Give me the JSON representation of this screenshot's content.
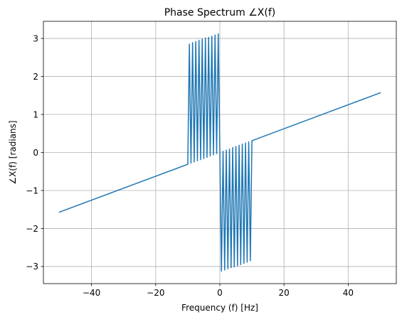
{
  "chart_data": {
    "type": "line",
    "title": "Phase Spectrum ∠X(f)",
    "xlabel": "Frequency (f) [Hz]",
    "ylabel": "∠X(f) [radians]",
    "xlim": [
      -55,
      55
    ],
    "ylim": [
      -3.45,
      3.45
    ],
    "xticks": [
      -40,
      -20,
      0,
      20,
      40
    ],
    "xtick_labels": [
      "−40",
      "−20",
      "0",
      "20",
      "40"
    ],
    "yticks": [
      -3,
      -2,
      -1,
      0,
      1,
      2,
      3
    ],
    "ytick_labels": [
      "−3",
      "−2",
      "−1",
      "0",
      "1",
      "2",
      "3"
    ],
    "grid": true,
    "colors": {
      "series": "#1f77b4",
      "grid": "#b0b0b0"
    },
    "series": [
      {
        "x": [
          -50,
          -10,
          -10,
          -9.5,
          -9,
          -9,
          -8.5,
          -8,
          -8,
          -7.5,
          -7,
          -7,
          -6.5,
          -6,
          -6,
          -5.5,
          -5,
          -5,
          -4.5,
          -4,
          -4,
          -3.5,
          -3,
          -3,
          -2.5,
          -2,
          -2,
          -1.5,
          -1,
          -1,
          -0.5,
          0,
          0,
          0.5,
          1,
          1,
          1.5,
          2,
          2,
          2.5,
          3,
          3,
          3.5,
          4,
          4,
          4.5,
          5,
          5,
          5.5,
          6,
          6,
          6.5,
          7,
          7,
          7.5,
          8,
          8,
          8.5,
          9,
          9,
          9.5,
          10,
          10,
          50
        ],
        "y": [
          -1.57,
          -0.31,
          -0.31,
          2.85,
          -0.28,
          -0.28,
          2.89,
          -0.25,
          -0.25,
          2.92,
          -0.22,
          -0.22,
          2.95,
          -0.19,
          -0.19,
          2.98,
          -0.16,
          -0.16,
          3.01,
          -0.13,
          -0.13,
          3.03,
          -0.09,
          -0.09,
          3.06,
          -0.06,
          -0.06,
          3.09,
          -0.03,
          -0.03,
          3.12,
          0,
          0,
          -3.12,
          0.03,
          0.03,
          -3.09,
          0.06,
          0.06,
          -3.06,
          0.09,
          0.09,
          -3.03,
          0.13,
          0.13,
          -3.01,
          0.16,
          0.16,
          -2.98,
          0.19,
          0.19,
          -2.95,
          0.22,
          0.22,
          -2.92,
          0.25,
          0.25,
          -2.89,
          0.28,
          0.28,
          -2.85,
          0.31,
          0.31,
          1.57
        ]
      }
    ]
  }
}
